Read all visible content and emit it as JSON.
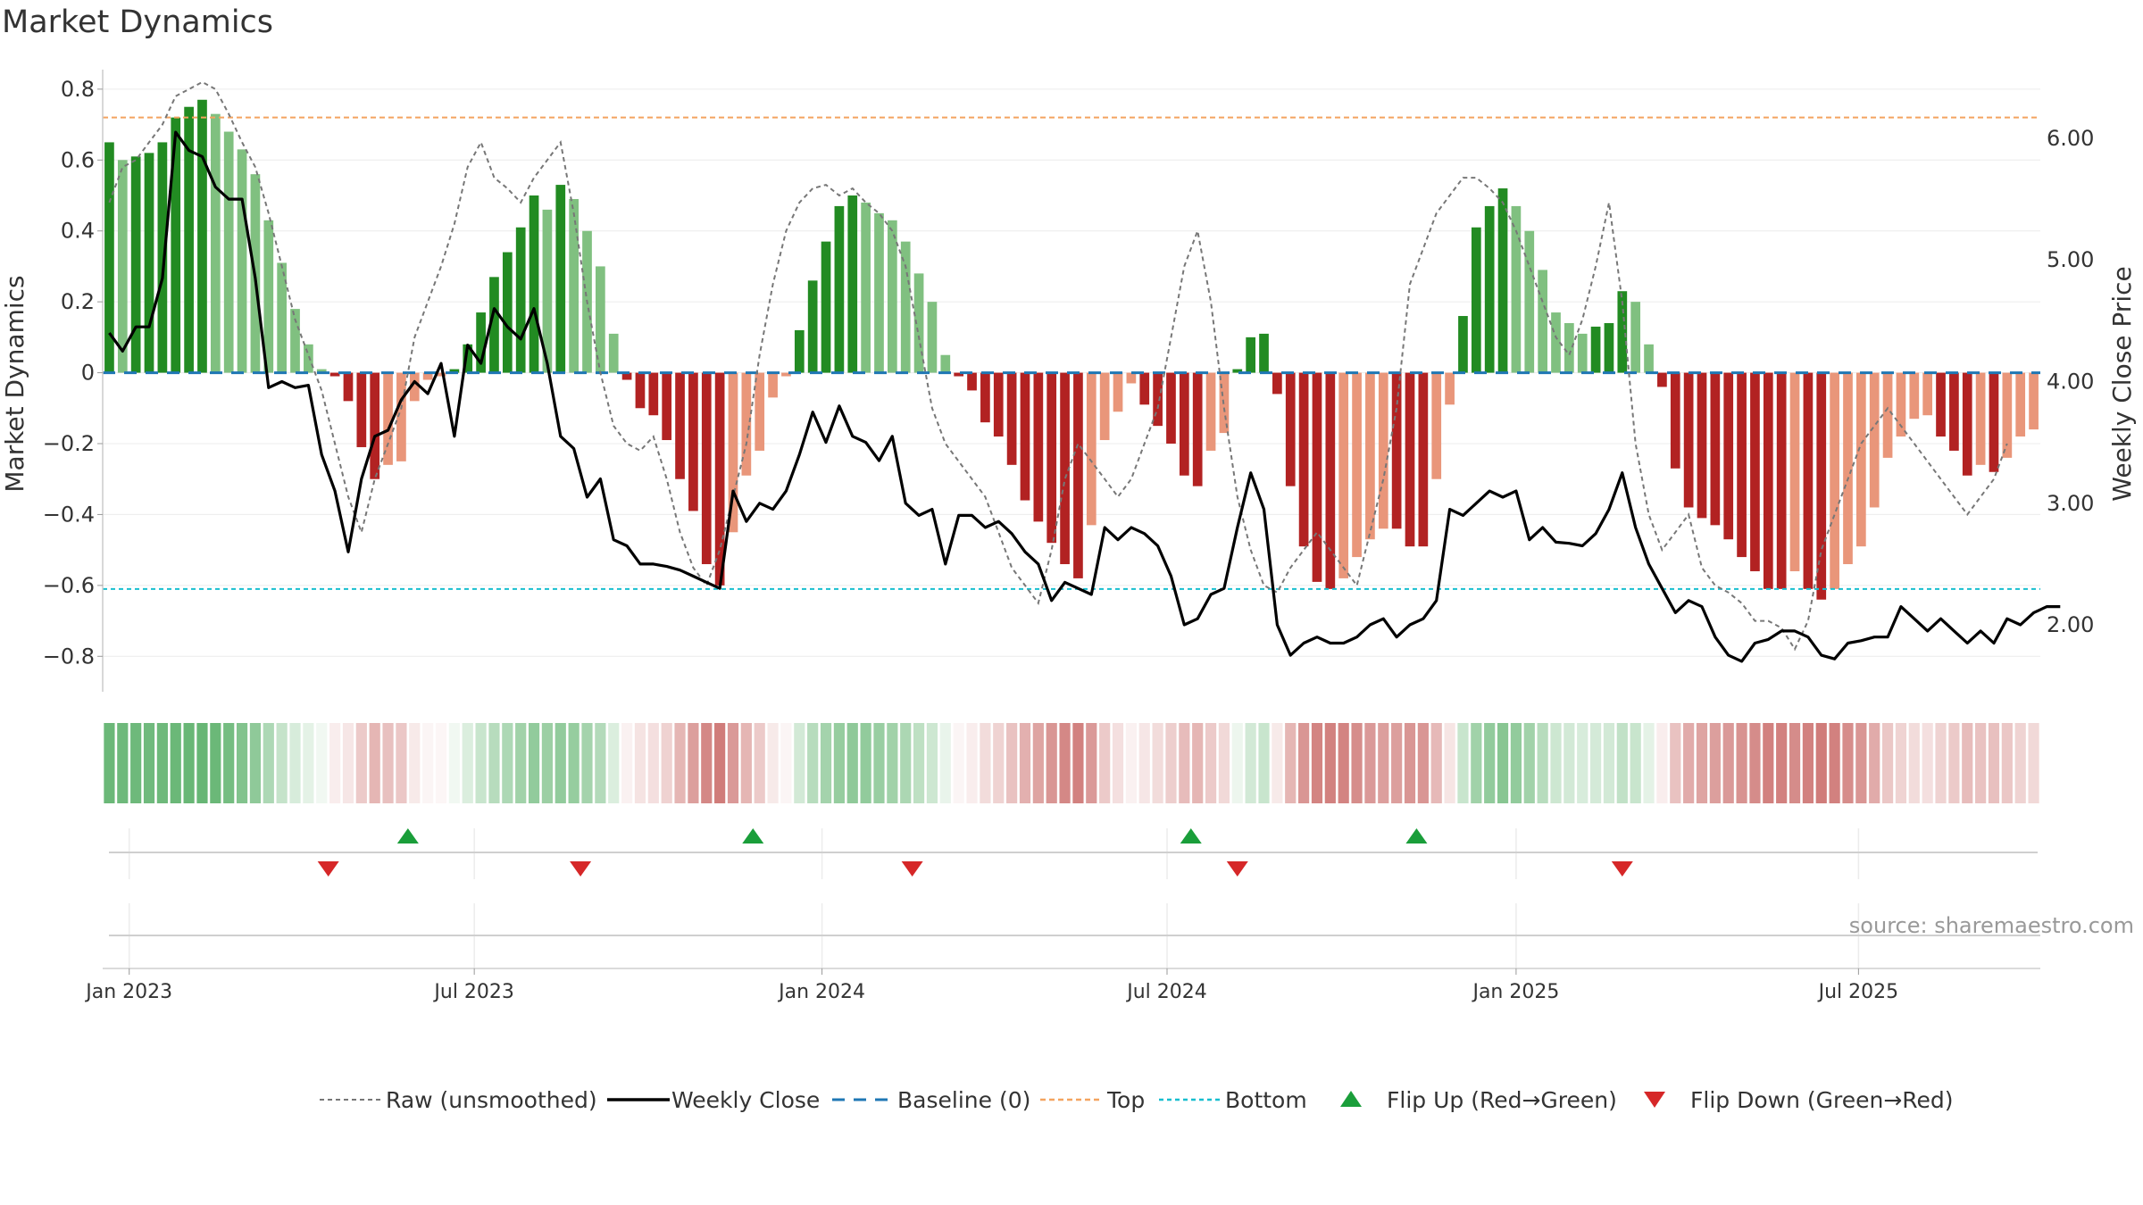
{
  "chart_data": {
    "type": "bar",
    "title": "Market Dynamics",
    "ylabel": "Market Dynamics",
    "y2label": "Weekly Close Price",
    "ylim": [
      -0.9,
      0.85
    ],
    "y2lim": [
      1.45,
      6.55
    ],
    "yticks": [
      0.8,
      0.6,
      0.4,
      0.2,
      0,
      -0.2,
      -0.4,
      -0.6,
      -0.8
    ],
    "ytick_labels": [
      "0.8",
      "0.6",
      "0.4",
      "0.2",
      "0",
      "−0.2",
      "−0.4",
      "−0.6",
      "−0.8"
    ],
    "y2ticks": [
      6,
      5,
      4,
      3,
      2
    ],
    "y2tick_labels": [
      "6.00",
      "5.00",
      "4.00",
      "3.00",
      "2.00"
    ],
    "xticks": [
      {
        "week": 1.5,
        "label": "Jan 2023"
      },
      {
        "week": 27.5,
        "label": "Jul 2023"
      },
      {
        "week": 53.7,
        "label": "Jan 2024"
      },
      {
        "week": 79.7,
        "label": "Jul 2024"
      },
      {
        "week": 106,
        "label": "Jan 2025"
      },
      {
        "week": 131.8,
        "label": "Jul 2025"
      }
    ],
    "top_level": 0.72,
    "bottom_level": -0.61,
    "baseline": 0,
    "bar_values": [
      0.65,
      0.6,
      0.61,
      0.62,
      0.65,
      0.72,
      0.75,
      0.77,
      0.73,
      0.68,
      0.63,
      0.56,
      0.43,
      0.31,
      0.18,
      0.08,
      0.01,
      -0.01,
      -0.08,
      -0.21,
      -0.3,
      -0.26,
      -0.25,
      -0.08,
      -0.02,
      -0.01,
      0.01,
      0.08,
      0.17,
      0.27,
      0.34,
      0.41,
      0.5,
      0.46,
      0.53,
      0.49,
      0.4,
      0.3,
      0.11,
      -0.02,
      -0.1,
      -0.12,
      -0.19,
      -0.3,
      -0.39,
      -0.54,
      -0.6,
      -0.45,
      -0.29,
      -0.22,
      -0.07,
      -0.01,
      0.12,
      0.26,
      0.37,
      0.47,
      0.5,
      0.48,
      0.45,
      0.43,
      0.37,
      0.28,
      0.2,
      0.05,
      -0.01,
      -0.05,
      -0.14,
      -0.18,
      -0.26,
      -0.36,
      -0.42,
      -0.48,
      -0.54,
      -0.58,
      -0.43,
      -0.19,
      -0.11,
      -0.03,
      -0.09,
      -0.15,
      -0.2,
      -0.29,
      -0.32,
      -0.22,
      -0.17,
      0.01,
      0.1,
      0.11,
      -0.06,
      -0.32,
      -0.49,
      -0.59,
      -0.61,
      -0.58,
      -0.52,
      -0.47,
      -0.44,
      -0.44,
      -0.49,
      -0.49,
      -0.3,
      -0.09,
      0.16,
      0.41,
      0.47,
      0.52,
      0.47,
      0.4,
      0.29,
      0.17,
      0.14,
      0.11,
      0.13,
      0.14,
      0.23,
      0.2,
      0.08,
      -0.04,
      -0.27,
      -0.38,
      -0.41,
      -0.43,
      -0.47,
      -0.52,
      -0.56,
      -0.61,
      -0.61,
      -0.56,
      -0.61,
      -0.64,
      -0.61,
      -0.54,
      -0.49,
      -0.38,
      -0.24,
      -0.18,
      -0.13,
      -0.12,
      -0.18,
      -0.22,
      -0.29,
      -0.26,
      -0.28,
      -0.24,
      -0.18,
      -0.16
    ],
    "raw_values": [
      0.48,
      0.58,
      0.6,
      0.65,
      0.7,
      0.78,
      0.8,
      0.82,
      0.8,
      0.73,
      0.65,
      0.58,
      0.45,
      0.3,
      0.15,
      0.05,
      -0.05,
      -0.2,
      -0.35,
      -0.45,
      -0.3,
      -0.2,
      -0.1,
      0.1,
      0.2,
      0.3,
      0.42,
      0.58,
      0.65,
      0.55,
      0.52,
      0.48,
      0.55,
      0.6,
      0.65,
      0.45,
      0.2,
      0.0,
      -0.15,
      -0.2,
      -0.22,
      -0.18,
      -0.3,
      -0.45,
      -0.55,
      -0.6,
      -0.5,
      -0.35,
      -0.2,
      0.05,
      0.25,
      0.4,
      0.48,
      0.52,
      0.53,
      0.5,
      0.52,
      0.48,
      0.45,
      0.4,
      0.3,
      0.1,
      -0.1,
      -0.2,
      -0.25,
      -0.3,
      -0.35,
      -0.45,
      -0.55,
      -0.6,
      -0.65,
      -0.5,
      -0.3,
      -0.2,
      -0.25,
      -0.3,
      -0.35,
      -0.3,
      -0.2,
      -0.1,
      0.1,
      0.3,
      0.4,
      0.2,
      -0.1,
      -0.35,
      -0.5,
      -0.6,
      -0.62,
      -0.55,
      -0.5,
      -0.45,
      -0.5,
      -0.55,
      -0.6,
      -0.45,
      -0.3,
      -0.1,
      0.25,
      0.35,
      0.45,
      0.5,
      0.55,
      0.55,
      0.52,
      0.48,
      0.4,
      0.3,
      0.2,
      0.1,
      0.05,
      0.15,
      0.3,
      0.48,
      0.2,
      -0.2,
      -0.4,
      -0.5,
      -0.45,
      -0.4,
      -0.55,
      -0.6,
      -0.62,
      -0.65,
      -0.7,
      -0.7,
      -0.72,
      -0.78,
      -0.7,
      -0.5,
      -0.4,
      -0.3,
      -0.2,
      -0.15,
      -0.1,
      -0.15,
      -0.2,
      -0.25,
      -0.3,
      -0.35,
      -0.4,
      -0.35,
      -0.3,
      -0.2
    ],
    "close_values": [
      4.4,
      4.25,
      4.45,
      4.45,
      4.85,
      6.05,
      5.9,
      5.85,
      5.6,
      5.5,
      5.5,
      4.85,
      3.95,
      4.0,
      3.95,
      3.97,
      3.4,
      3.1,
      2.6,
      3.2,
      3.55,
      3.6,
      3.85,
      4.0,
      3.9,
      4.15,
      3.55,
      4.3,
      4.15,
      4.6,
      4.45,
      4.35,
      4.6,
      4.15,
      3.55,
      3.45,
      3.05,
      3.2,
      2.7,
      2.65,
      2.5,
      2.5,
      2.48,
      2.45,
      2.4,
      2.35,
      2.3,
      3.1,
      2.85,
      3.0,
      2.95,
      3.1,
      3.4,
      3.75,
      3.5,
      3.8,
      3.55,
      3.5,
      3.35,
      3.55,
      3.0,
      2.9,
      2.95,
      2.5,
      2.9,
      2.9,
      2.8,
      2.85,
      2.75,
      2.6,
      2.5,
      2.2,
      2.35,
      2.3,
      2.25,
      2.8,
      2.7,
      2.8,
      2.75,
      2.65,
      2.4,
      2.0,
      2.05,
      2.25,
      2.3,
      2.8,
      3.25,
      2.95,
      2.0,
      1.75,
      1.85,
      1.9,
      1.85,
      1.85,
      1.9,
      2.0,
      2.05,
      1.9,
      2.0,
      2.05,
      2.2,
      2.95,
      2.9,
      3.0,
      3.1,
      3.05,
      3.1,
      2.7,
      2.8,
      2.68,
      2.67,
      2.65,
      2.75,
      2.95,
      3.25,
      2.8,
      2.5,
      2.3,
      2.1,
      2.2,
      2.15,
      1.9,
      1.75,
      1.7,
      1.85,
      1.88,
      1.95,
      1.95,
      1.9,
      1.75,
      1.72,
      1.85,
      1.87,
      1.9,
      1.9,
      2.15,
      2.05,
      1.95,
      2.05,
      1.95,
      1.85,
      1.95,
      1.85,
      2.05,
      2.0,
      2.1,
      2.15,
      2.15
    ],
    "strip_strengths": [
      0.82,
      0.8,
      0.8,
      0.79,
      0.8,
      0.82,
      0.83,
      0.84,
      0.82,
      0.76,
      0.69,
      0.62,
      0.45,
      0.32,
      0.22,
      0.15,
      0.08,
      0.1,
      0.14,
      0.3,
      0.42,
      0.36,
      0.32,
      0.12,
      0.06,
      0.05,
      0.08,
      0.2,
      0.3,
      0.4,
      0.45,
      0.52,
      0.6,
      0.55,
      0.6,
      0.58,
      0.5,
      0.42,
      0.2,
      0.08,
      0.16,
      0.18,
      0.26,
      0.42,
      0.55,
      0.68,
      0.75,
      0.58,
      0.42,
      0.3,
      0.12,
      0.06,
      0.25,
      0.4,
      0.5,
      0.58,
      0.62,
      0.6,
      0.56,
      0.52,
      0.46,
      0.36,
      0.28,
      0.12,
      0.06,
      0.1,
      0.2,
      0.25,
      0.35,
      0.45,
      0.52,
      0.6,
      0.68,
      0.72,
      0.58,
      0.3,
      0.18,
      0.08,
      0.14,
      0.2,
      0.28,
      0.38,
      0.42,
      0.3,
      0.22,
      0.1,
      0.25,
      0.3,
      0.12,
      0.42,
      0.6,
      0.7,
      0.72,
      0.7,
      0.65,
      0.58,
      0.55,
      0.55,
      0.6,
      0.6,
      0.4,
      0.15,
      0.3,
      0.52,
      0.6,
      0.66,
      0.6,
      0.52,
      0.4,
      0.28,
      0.25,
      0.22,
      0.24,
      0.25,
      0.34,
      0.3,
      0.15,
      0.1,
      0.35,
      0.48,
      0.52,
      0.55,
      0.58,
      0.62,
      0.66,
      0.72,
      0.72,
      0.66,
      0.72,
      0.75,
      0.72,
      0.65,
      0.6,
      0.48,
      0.32,
      0.25,
      0.2,
      0.18,
      0.25,
      0.3,
      0.38,
      0.35,
      0.36,
      0.32,
      0.25,
      0.22
    ],
    "flip_up_weeks": [
      22.5,
      48.5,
      81.5,
      98.5
    ],
    "flip_down_weeks": [
      16.5,
      35.5,
      60.5,
      85,
      114
    ],
    "source": "source: sharemaestro.com",
    "legend": [
      {
        "key": "raw",
        "label": "Raw (unsmoothed)"
      },
      {
        "key": "close",
        "label": "Weekly Close"
      },
      {
        "key": "baseline",
        "label": "Baseline (0)"
      },
      {
        "key": "top",
        "label": "Top"
      },
      {
        "key": "bottom",
        "label": "Bottom"
      },
      {
        "key": "flipup",
        "label": "Flip Up (Red→Green)"
      },
      {
        "key": "flipdown",
        "label": "Flip Down (Green→Red)"
      }
    ],
    "colors": {
      "green_strong": "#228b22",
      "green_light": "#80c080",
      "red_strong": "#b22222",
      "red_light": "#e9967a",
      "raw": "#777777",
      "close": "#000000",
      "baseline": "#1f77b4",
      "top": "#f4a460",
      "bottom": "#17becf",
      "flip_up": "#1a9e3a",
      "flip_down": "#d62728"
    }
  }
}
